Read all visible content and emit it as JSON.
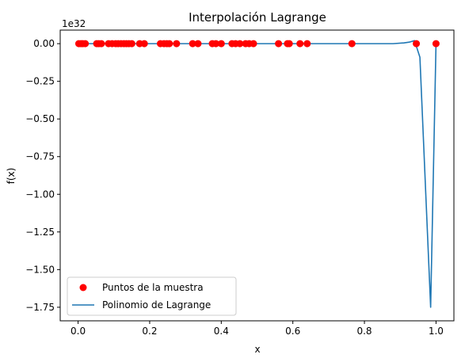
{
  "chart_data": {
    "type": "scatter",
    "title": "Interpolación Lagrange",
    "xlabel": "x",
    "ylabel": "f(x)",
    "y_offset_label": "1e32",
    "y_scale": 1e+32,
    "xlim": [
      -0.05,
      1.05
    ],
    "ylim": [
      -1.84,
      0.09
    ],
    "grid": false,
    "legend_placement": "lower-left",
    "x_ticks": [
      0.0,
      0.2,
      0.4,
      0.6,
      0.8,
      1.0
    ],
    "x_tick_labels": [
      "0.0",
      "0.2",
      "0.4",
      "0.6",
      "0.8",
      "1.0"
    ],
    "y_ticks": [
      0.0,
      -0.25,
      -0.5,
      -0.75,
      -1.0,
      -1.25,
      -1.5,
      -1.75
    ],
    "y_tick_labels": [
      "0.00",
      "−0.25",
      "−0.50",
      "−0.75",
      "−1.00",
      "−1.25",
      "−1.50",
      "−1.75"
    ],
    "series": [
      {
        "name": "Puntos de la muestra",
        "kind": "scatter",
        "color": "#ff0000",
        "x": [
          0.002,
          0.008,
          0.013,
          0.02,
          0.052,
          0.058,
          0.065,
          0.085,
          0.095,
          0.105,
          0.112,
          0.12,
          0.128,
          0.135,
          0.142,
          0.15,
          0.172,
          0.185,
          0.23,
          0.24,
          0.248,
          0.255,
          0.275,
          0.32,
          0.335,
          0.375,
          0.385,
          0.4,
          0.43,
          0.44,
          0.452,
          0.468,
          0.478,
          0.49,
          0.56,
          0.585,
          0.59,
          0.62,
          0.64,
          0.765,
          0.945,
          1.0
        ],
        "y": [
          0,
          0,
          0,
          0,
          0,
          0,
          0,
          0,
          0,
          0,
          0,
          0,
          0,
          0,
          0,
          0,
          0,
          0,
          0,
          0,
          0,
          0,
          0,
          0,
          0,
          0,
          0,
          0,
          0,
          0,
          0,
          0,
          0,
          0,
          0,
          0,
          0,
          0,
          0,
          0,
          0,
          0
        ]
      },
      {
        "name": "Polinomio de Lagrange",
        "kind": "line",
        "color": "#1f77b4",
        "x": [
          0.0,
          0.1,
          0.2,
          0.3,
          0.4,
          0.5,
          0.6,
          0.7,
          0.8,
          0.88,
          0.91,
          0.925,
          0.94,
          0.955,
          0.985,
          1.0
        ],
        "y": [
          0.0,
          0.0,
          0.0,
          0.0,
          0.0,
          0.0,
          0.0,
          0.0,
          0.0,
          0.0,
          0.005,
          0.01,
          0.02,
          -0.09,
          -1.75,
          0.0
        ]
      }
    ]
  }
}
